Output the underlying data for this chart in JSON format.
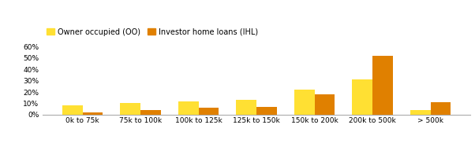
{
  "categories": [
    "0k to 75k",
    "75k to 100k",
    "100k to 125k",
    "125k to 150k",
    "150k to 200k",
    "200k to 500k",
    "> 500k"
  ],
  "oo_values": [
    0.08,
    0.1,
    0.12,
    0.13,
    0.22,
    0.31,
    0.04
  ],
  "ihl_values": [
    0.02,
    0.04,
    0.06,
    0.07,
    0.18,
    0.52,
    0.11
  ],
  "oo_color": "#FFE033",
  "ihl_color": "#E08000",
  "ylim": [
    0,
    0.65
  ],
  "yticks": [
    0.0,
    0.1,
    0.2,
    0.3,
    0.4,
    0.5,
    0.6
  ],
  "ytick_labels": [
    "0%",
    "10%",
    "20%",
    "30%",
    "40%",
    "50%",
    "60%"
  ],
  "legend_oo": "Owner occupied (OO)",
  "legend_ihl": "Investor home loans (IHL)",
  "bar_width": 0.35,
  "background_color": "#ffffff",
  "legend_fontsize": 7.0,
  "tick_fontsize": 6.5
}
